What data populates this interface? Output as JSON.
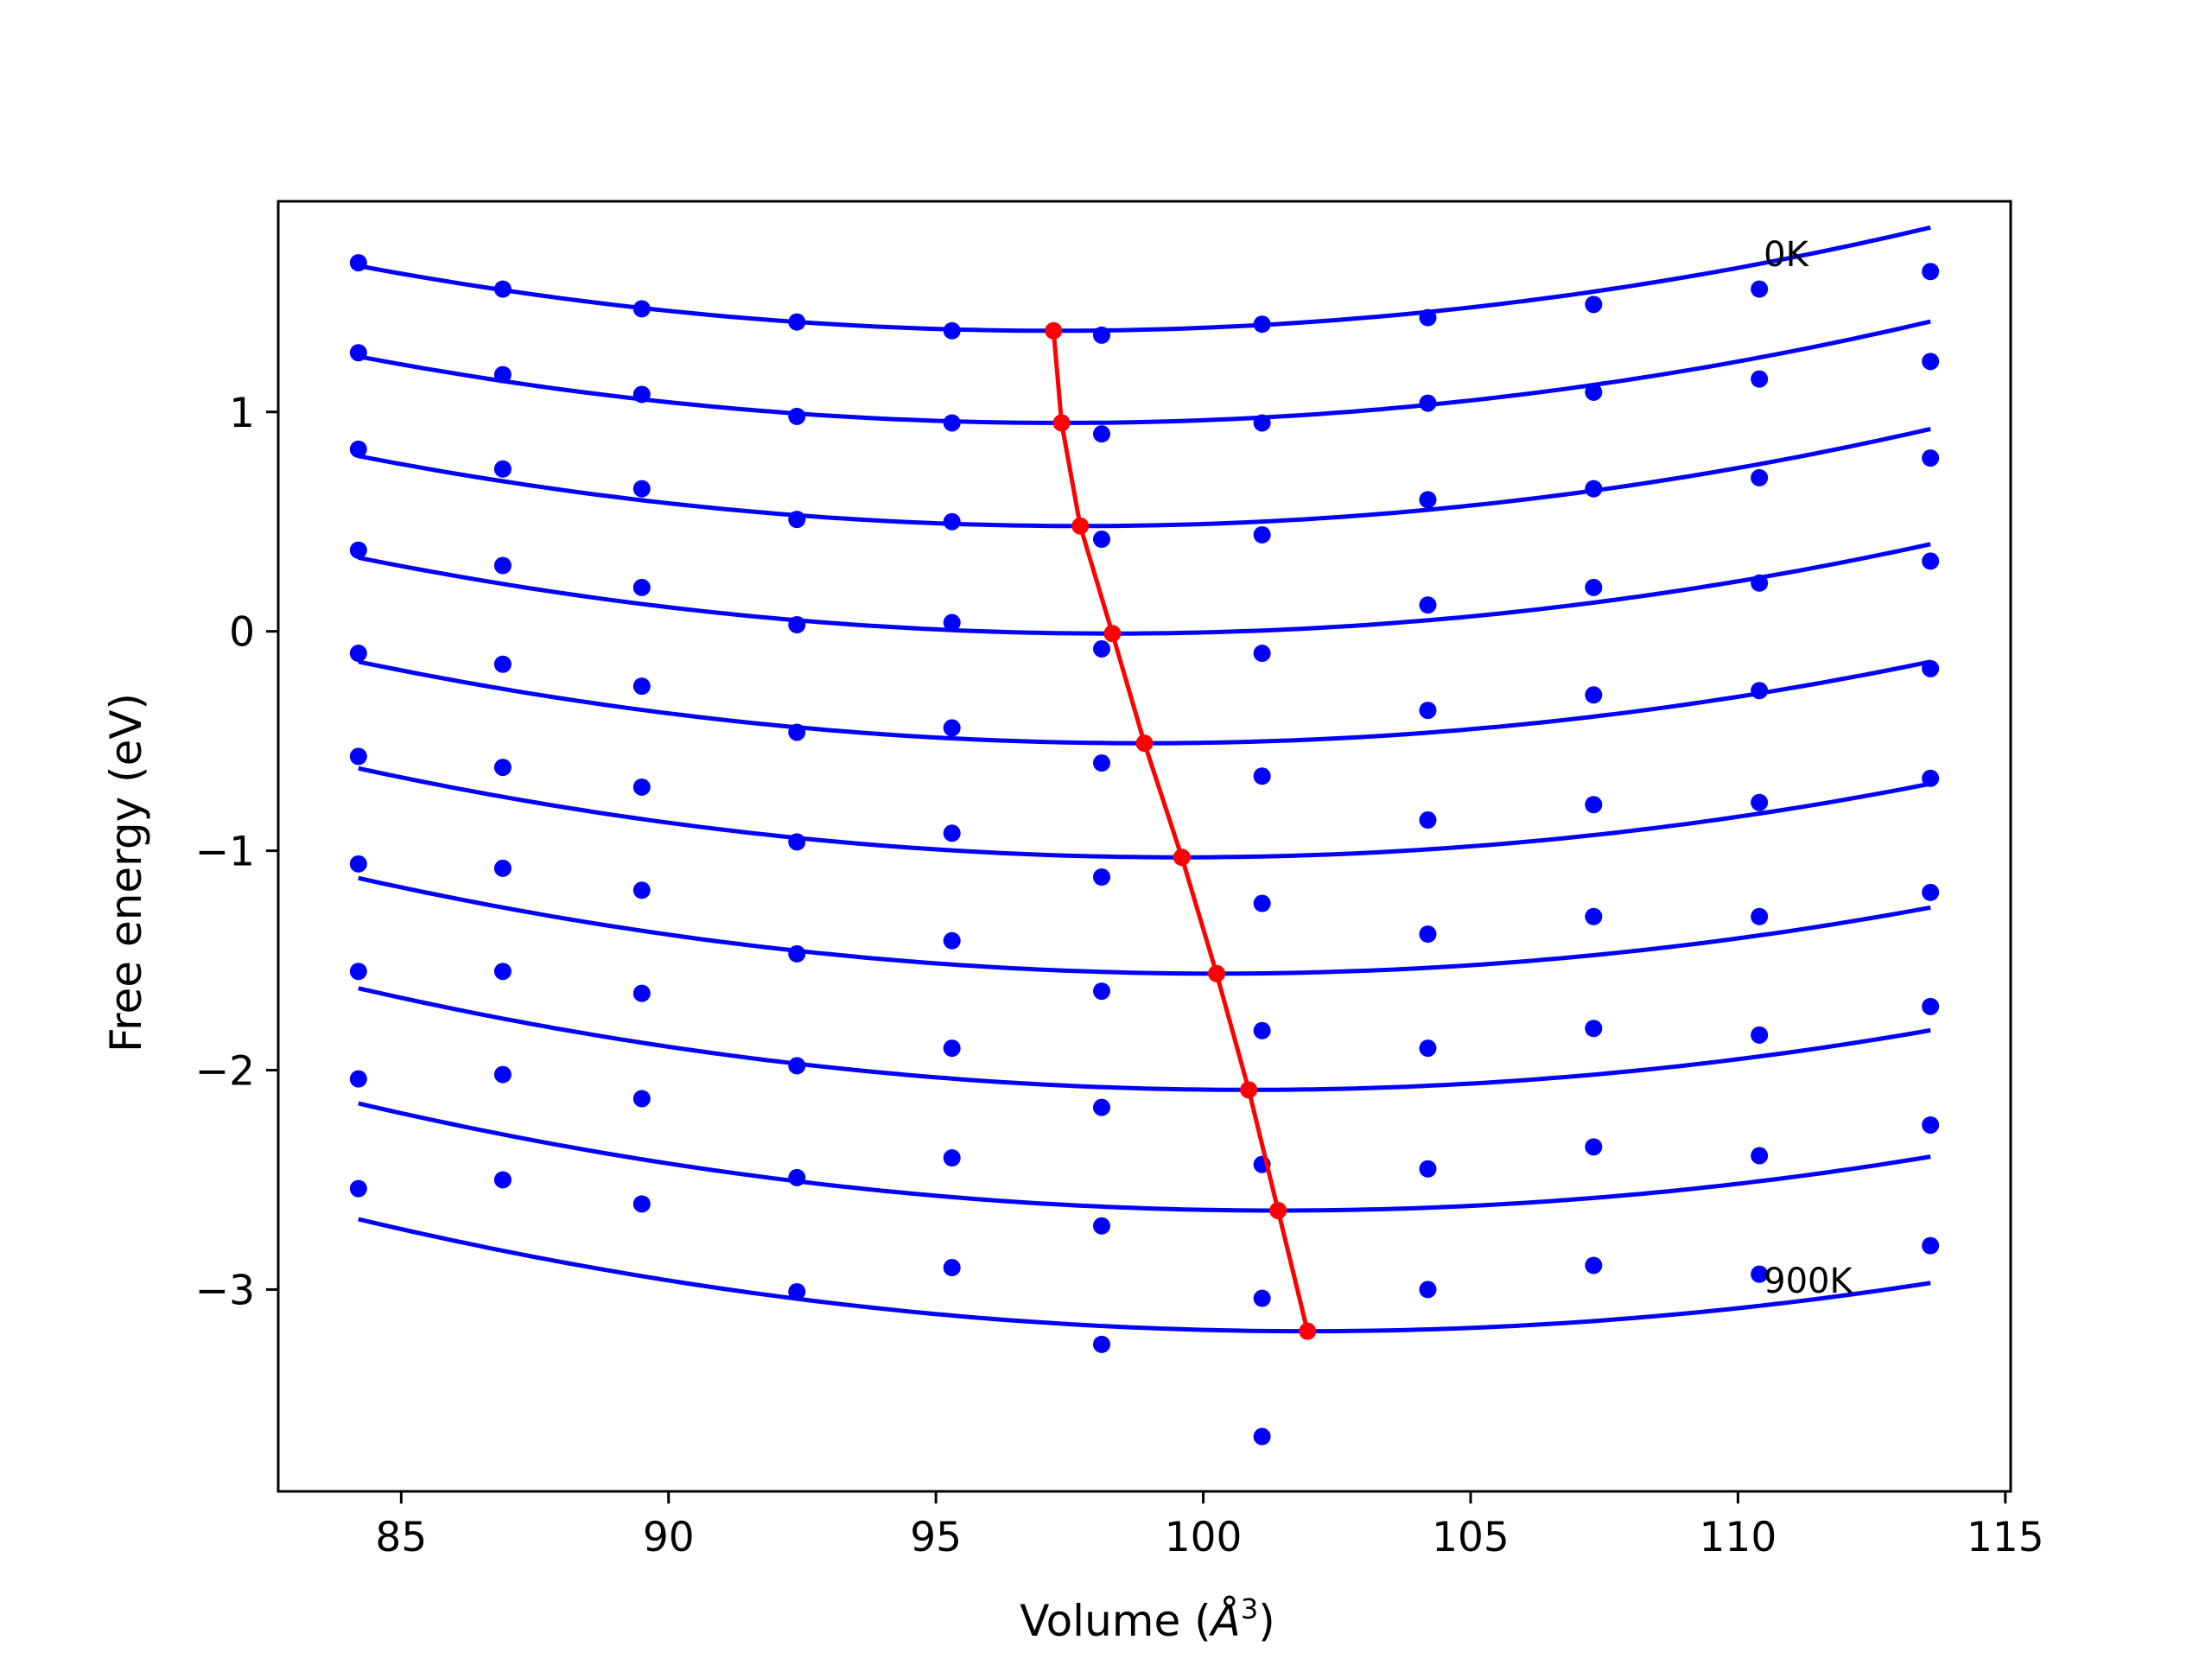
{
  "chart_data": {
    "type": "line",
    "xlabel": "Volume (",
    "xlabel_symbol": "Å",
    "xlabel_exp": "3",
    "xlabel_close": ")",
    "ylabel": "Free energy (eV)",
    "xlim": [
      82.7,
      115.1
    ],
    "ylim": [
      -3.92,
      1.96
    ],
    "xticks": [
      85,
      90,
      95,
      100,
      105,
      110,
      115
    ],
    "xtick_labels": [
      "85",
      "90",
      "95",
      "100",
      "105",
      "110",
      "115"
    ],
    "yticks": [
      -3,
      -2,
      -1,
      0,
      1
    ],
    "ytick_labels": [
      "−3",
      "−2",
      "−1",
      "0",
      "1"
    ],
    "grid": false,
    "legend": "none",
    "fit_color": "#0000ff",
    "point_color": "#0000ff",
    "minima_color": "#ff0000",
    "volumes": [
      84.2,
      86.9,
      89.5,
      92.4,
      95.3,
      98.1,
      101.1,
      104.2,
      107.3,
      110.4,
      113.6
    ],
    "fit_x_range": [
      84.2,
      113.6
    ],
    "series": [
      {
        "fit": {
          "a": 0.00175,
          "v0": 97.2,
          "e0": 1.37
        },
        "values": [
          1.68,
          1.56,
          1.47,
          1.41,
          1.37,
          1.35,
          1.4,
          1.43,
          1.49,
          1.56,
          1.64
        ]
      },
      {
        "fit": {
          "a": 0.00175,
          "v0": 97.35,
          "e0": 0.95
        },
        "values": [
          1.27,
          1.17,
          1.08,
          0.98,
          0.95,
          0.9,
          0.95,
          1.04,
          1.09,
          1.15,
          1.23
        ]
      },
      {
        "fit": {
          "a": 0.00175,
          "v0": 97.7,
          "e0": 0.48
        },
        "values": [
          0.83,
          0.74,
          0.65,
          0.51,
          0.5,
          0.42,
          0.44,
          0.6,
          0.65,
          0.7,
          0.79
        ]
      },
      {
        "fit": {
          "a": 0.00174,
          "v0": 98.3,
          "e0": -0.01
        },
        "values": [
          0.37,
          0.3,
          0.2,
          0.03,
          0.04,
          -0.08,
          -0.1,
          0.12,
          0.2,
          0.22,
          0.32
        ]
      },
      {
        "fit": {
          "a": 0.00172,
          "v0": 98.9,
          "e0": -0.51
        },
        "values": [
          -0.1,
          -0.15,
          -0.25,
          -0.46,
          -0.44,
          -0.6,
          -0.66,
          -0.36,
          -0.29,
          -0.27,
          -0.17
        ]
      },
      {
        "fit": {
          "a": 0.00171,
          "v0": 99.6,
          "e0": -1.03
        },
        "values": [
          -0.57,
          -0.62,
          -0.71,
          -0.96,
          -0.92,
          -1.12,
          -1.24,
          -0.86,
          -0.79,
          -0.78,
          -0.67
        ]
      },
      {
        "fit": {
          "a": 0.00169,
          "v0": 100.25,
          "e0": -1.56
        },
        "values": [
          -1.06,
          -1.08,
          -1.18,
          -1.47,
          -1.41,
          -1.64,
          -1.82,
          -1.38,
          -1.3,
          -1.3,
          -1.19
        ]
      },
      {
        "fit": {
          "a": 0.00167,
          "v0": 100.85,
          "e0": -2.09
        },
        "values": [
          -1.55,
          -1.55,
          -1.65,
          -1.98,
          -1.9,
          -2.17,
          -2.43,
          -1.9,
          -1.81,
          -1.84,
          -1.71
        ]
      },
      {
        "fit": {
          "a": 0.00165,
          "v0": 101.4,
          "e0": -2.64
        },
        "values": [
          -2.04,
          -2.02,
          -2.13,
          -2.49,
          -2.4,
          -2.71,
          -3.04,
          -2.45,
          -2.35,
          -2.39,
          -2.25
        ]
      },
      {
        "fit": {
          "a": 0.00162,
          "v0": 101.95,
          "e0": -3.19
        },
        "values": [
          -2.54,
          -2.5,
          -2.61,
          -3.01,
          -2.9,
          -3.25,
          -3.67,
          -3.0,
          -2.89,
          -2.93,
          -2.8
        ]
      }
    ],
    "minima": {
      "x": [
        97.2,
        97.35,
        97.7,
        98.3,
        98.9,
        99.6,
        100.25,
        100.85,
        101.4,
        101.95
      ],
      "y": [
        1.37,
        0.95,
        0.48,
        -0.01,
        -0.51,
        -1.03,
        -1.56,
        -2.09,
        -2.64,
        -3.19
      ]
    },
    "annotations": [
      {
        "text": "0K",
        "x": 110.4,
        "y": 1.72
      },
      {
        "text": "900K",
        "x": 110.4,
        "y": -2.96
      }
    ]
  }
}
